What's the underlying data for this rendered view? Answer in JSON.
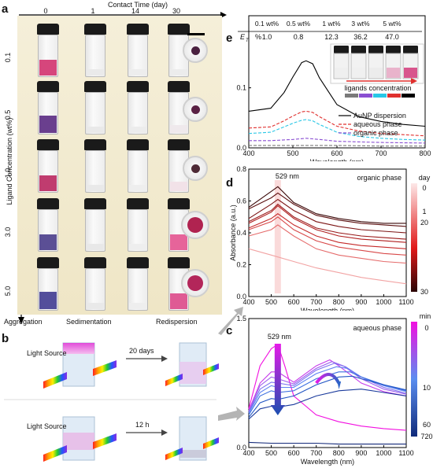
{
  "panels": {
    "a": "a",
    "b": "b",
    "c": "c",
    "d": "d",
    "e": "e"
  },
  "panel_a": {
    "top_axis_title": "Contact Time (day)",
    "top_ticks": [
      "0",
      "1",
      "14",
      "30"
    ],
    "left_axis_title": "Ligand Concentration (wt%)",
    "left_ticks": [
      "0.1",
      "0.5",
      "1.0",
      "3.0",
      "5.0"
    ],
    "bottom_labels": [
      "Aggregation",
      "Sedimentation",
      "Redispersion"
    ],
    "liquid_colors": [
      [
        "#d6467c",
        "#eaeaea",
        "#ededed",
        "#ececec"
      ],
      [
        "#6a3f8e",
        "#e9e9e9",
        "#ececec",
        "#efe9ec"
      ],
      [
        "#c03c6f",
        "#e9e9e9",
        "#eeeeee",
        "#f2e2e8"
      ],
      [
        "#5b4f95",
        "#e8e8e8",
        "#eeeeee",
        "#e6649a"
      ],
      [
        "#534e9b",
        "#e9e9e9",
        "#eeeeee",
        "#df5a94"
      ]
    ],
    "dish_colors": [
      "#4a2140",
      "#5a2144",
      "#4e2a36",
      "#b02350",
      "#b3265a"
    ]
  },
  "panel_b": {
    "row1_label": "Light Source",
    "row1_arrow": "20 days",
    "row2_label": "Light Source",
    "row2_arrow": "12 h"
  },
  "chart_data": [
    {
      "panel": "e",
      "type": "line",
      "xlabel": "Wavelength (nm)",
      "ylabel": "",
      "xlim": [
        400,
        800
      ],
      "xticks": [
        "400",
        "500",
        "600",
        "700",
        "800"
      ],
      "yticks": [
        "0.0",
        "0.1"
      ],
      "legend": [
        "AuNP dispersion",
        "aqueous phase",
        "organic phase"
      ],
      "legend_placement": "right",
      "table_header": [
        "0.1 wt%",
        "0.5 wt%",
        "1 wt%",
        "3 wt%",
        "5 wt%"
      ],
      "table_row_label": "E",
      "table_row_sub": "T",
      "table_row_unit": "%",
      "table_values": [
        "1.0",
        "0.8",
        "12.3",
        "36.2",
        "47.0"
      ],
      "inset_label": "ligands concentration",
      "series": [
        {
          "name": "AuNP dispersion",
          "color": "#000000",
          "style": "solid",
          "x": [
            400,
            450,
            480,
            500,
            520,
            530,
            545,
            560,
            600,
            650,
            700,
            750,
            800
          ],
          "y": [
            0.061,
            0.066,
            0.092,
            0.118,
            0.142,
            0.145,
            0.14,
            0.117,
            0.072,
            0.052,
            0.044,
            0.039,
            0.036
          ]
        },
        {
          "name": "aqueous phase",
          "color": "#e0302e",
          "style": "dashed",
          "x": [
            400,
            450,
            480,
            500,
            520,
            530,
            545,
            560,
            600,
            650,
            700,
            750,
            800
          ],
          "y": [
            0.033,
            0.035,
            0.045,
            0.053,
            0.06,
            0.061,
            0.059,
            0.052,
            0.036,
            0.028,
            0.024,
            0.022,
            0.02
          ]
        },
        {
          "name": "",
          "color": "#29c7e6",
          "style": "dashed",
          "x": [
            400,
            450,
            480,
            500,
            520,
            530,
            545,
            560,
            600,
            650,
            700,
            750,
            800
          ],
          "y": [
            0.024,
            0.026,
            0.035,
            0.041,
            0.046,
            0.047,
            0.045,
            0.039,
            0.026,
            0.019,
            0.016,
            0.014,
            0.013
          ]
        },
        {
          "name": "organic phase",
          "color": "#8a4fd2",
          "style": "dashed",
          "x": [
            400,
            450,
            500,
            530,
            560,
            600,
            650,
            700,
            800
          ],
          "y": [
            0.012,
            0.012,
            0.014,
            0.016,
            0.014,
            0.011,
            0.01,
            0.009,
            0.008
          ]
        },
        {
          "name": "",
          "color": "#7a7a7a",
          "style": "dashed",
          "x": [
            400,
            500,
            600,
            700,
            800
          ],
          "y": [
            0.004,
            0.004,
            0.004,
            0.003,
            0.003
          ]
        }
      ]
    },
    {
      "panel": "d",
      "type": "line",
      "xlabel": "Wavelength (nm)",
      "ylabel": "Absorbance (a.u.)",
      "xlim": [
        400,
        1100
      ],
      "ylim": [
        0.0,
        0.8
      ],
      "xticks": [
        "400",
        "500",
        "600",
        "700",
        "800",
        "900",
        "1000",
        "1100"
      ],
      "yticks": [
        "0.0",
        "0.2",
        "0.4",
        "0.6",
        "0.8"
      ],
      "annotation": "529 nm",
      "phase_label": "organic phase",
      "colorbar_title": "day",
      "colorbar_ticks": [
        "0",
        "1",
        "20",
        "30"
      ],
      "series": [
        {
          "color": "#f2a3a3",
          "x": [
            400,
            500,
            600,
            700,
            800,
            900,
            1000,
            1100
          ],
          "y": [
            0.3,
            0.26,
            0.22,
            0.18,
            0.15,
            0.12,
            0.1,
            0.08
          ]
        },
        {
          "color": "#e56b6b",
          "x": [
            400,
            500,
            529,
            600,
            700,
            800,
            900,
            1000,
            1100
          ],
          "y": [
            0.38,
            0.42,
            0.45,
            0.38,
            0.3,
            0.26,
            0.24,
            0.22,
            0.21
          ]
        },
        {
          "color": "#d84848",
          "x": [
            400,
            500,
            529,
            600,
            700,
            800,
            900,
            1000,
            1100
          ],
          "y": [
            0.42,
            0.47,
            0.5,
            0.42,
            0.35,
            0.31,
            0.29,
            0.27,
            0.26
          ]
        },
        {
          "color": "#c52a2a",
          "x": [
            400,
            500,
            529,
            600,
            700,
            800,
            900,
            1000,
            1100
          ],
          "y": [
            0.43,
            0.49,
            0.52,
            0.45,
            0.38,
            0.34,
            0.32,
            0.31,
            0.3
          ]
        },
        {
          "color": "#b01e1e",
          "x": [
            400,
            500,
            529,
            600,
            700,
            800,
            900,
            1000,
            1100
          ],
          "y": [
            0.46,
            0.53,
            0.57,
            0.49,
            0.42,
            0.38,
            0.36,
            0.35,
            0.34
          ]
        },
        {
          "color": "#981818",
          "x": [
            400,
            500,
            529,
            600,
            700,
            800,
            900,
            1000,
            1100
          ],
          "y": [
            0.47,
            0.54,
            0.58,
            0.5,
            0.43,
            0.4,
            0.38,
            0.37,
            0.36
          ]
        },
        {
          "color": "#7c1414",
          "x": [
            400,
            500,
            529,
            600,
            700,
            800,
            900,
            1000,
            1100
          ],
          "y": [
            0.49,
            0.58,
            0.61,
            0.54,
            0.47,
            0.44,
            0.42,
            0.41,
            0.4
          ]
        },
        {
          "color": "#5c1010",
          "x": [
            400,
            500,
            529,
            600,
            700,
            800,
            900,
            1000,
            1100
          ],
          "y": [
            0.55,
            0.62,
            0.65,
            0.58,
            0.51,
            0.48,
            0.46,
            0.45,
            0.44
          ]
        },
        {
          "color": "#3a0808",
          "x": [
            400,
            500,
            529,
            600,
            700,
            800,
            900,
            1000,
            1100
          ],
          "y": [
            0.56,
            0.66,
            0.69,
            0.59,
            0.52,
            0.49,
            0.47,
            0.46,
            0.46
          ]
        }
      ]
    },
    {
      "panel": "c",
      "type": "line",
      "xlabel": "Wavelength (nm)",
      "ylabel": "",
      "xlim": [
        400,
        1100
      ],
      "ylim": [
        0.0,
        1.5
      ],
      "xticks": [
        "400",
        "500",
        "600",
        "700",
        "800",
        "900",
        "1000",
        "1100"
      ],
      "yticks": [
        "0.0",
        "1.5"
      ],
      "annotation": "529 nm",
      "phase_label": "aqueous phase",
      "colorbar_title": "min",
      "colorbar_ticks": [
        "0",
        "10",
        "60",
        "720"
      ],
      "series": [
        {
          "color": "#f20fe0",
          "x": [
            400,
            450,
            500,
            529,
            560,
            600,
            700,
            800,
            900,
            1000,
            1100
          ],
          "y": [
            0.45,
            0.95,
            1.15,
            1.2,
            0.95,
            0.6,
            0.38,
            0.3,
            0.25,
            0.22,
            0.2
          ]
        },
        {
          "color": "#c63aea",
          "x": [
            400,
            450,
            500,
            529,
            600,
            700,
            760,
            800,
            900,
            1000,
            1100
          ],
          "y": [
            0.43,
            0.75,
            0.88,
            0.88,
            0.76,
            0.95,
            1.02,
            0.95,
            0.75,
            0.65,
            0.6
          ]
        },
        {
          "color": "#9d5fee",
          "x": [
            400,
            450,
            500,
            529,
            600,
            700,
            770,
            820,
            900,
            1000,
            1100
          ],
          "y": [
            0.42,
            0.72,
            0.82,
            0.8,
            0.74,
            0.92,
            1.0,
            0.95,
            0.8,
            0.68,
            0.62
          ]
        },
        {
          "color": "#7a6ff0",
          "x": [
            400,
            450,
            500,
            529,
            600,
            700,
            780,
            830,
            900,
            1000,
            1100
          ],
          "y": [
            0.41,
            0.68,
            0.76,
            0.75,
            0.72,
            0.9,
            0.98,
            0.94,
            0.82,
            0.7,
            0.63
          ]
        },
        {
          "color": "#5e82f2",
          "x": [
            400,
            450,
            500,
            529,
            600,
            700,
            790,
            840,
            900,
            1000,
            1100
          ],
          "y": [
            0.4,
            0.64,
            0.72,
            0.7,
            0.7,
            0.86,
            0.94,
            0.92,
            0.82,
            0.72,
            0.65
          ]
        },
        {
          "color": "#3c6fe0",
          "x": [
            400,
            450,
            500,
            529,
            600,
            700,
            800,
            850,
            900,
            1000,
            1100
          ],
          "y": [
            0.38,
            0.6,
            0.66,
            0.64,
            0.66,
            0.8,
            0.88,
            0.88,
            0.82,
            0.73,
            0.66
          ]
        },
        {
          "color": "#2256c4",
          "x": [
            400,
            450,
            500,
            529,
            600,
            700,
            800,
            860,
            900,
            1000,
            1100
          ],
          "y": [
            0.35,
            0.52,
            0.57,
            0.56,
            0.6,
            0.73,
            0.82,
            0.83,
            0.8,
            0.73,
            0.67
          ]
        },
        {
          "color": "#1a3a9c",
          "x": [
            400,
            450,
            500,
            529,
            600,
            700,
            800,
            900,
            1000,
            1100
          ],
          "y": [
            0.33,
            0.45,
            0.48,
            0.47,
            0.5,
            0.6,
            0.66,
            0.68,
            0.64,
            0.6
          ]
        },
        {
          "color": "#142a7a",
          "x": [
            400,
            500,
            600,
            700,
            800,
            900,
            1000,
            1100
          ],
          "y": [
            0.06,
            0.05,
            0.05,
            0.05,
            0.04,
            0.04,
            0.04,
            0.04
          ]
        }
      ]
    }
  ]
}
